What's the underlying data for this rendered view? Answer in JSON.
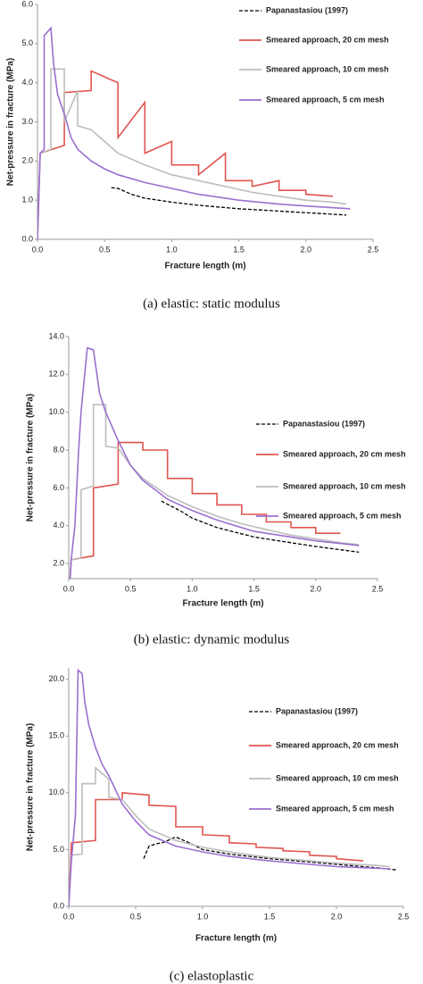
{
  "chart_data": [
    {
      "type": "line",
      "caption": "(a)  elastic: static modulus",
      "x_label": "Fracture length (m)",
      "y_label": "Net-pressure in fracture (MPa)",
      "xlim": [
        0,
        2.5
      ],
      "ylim": [
        0,
        6
      ],
      "xticks": [
        {
          "value": 0,
          "label": "0.0"
        },
        {
          "value": 0.5,
          "label": "0.5"
        },
        {
          "value": 1,
          "label": "1.0"
        },
        {
          "value": 1.5,
          "label": "1.5"
        },
        {
          "value": 2,
          "label": "2.0"
        },
        {
          "value": 2.5,
          "label": "2.5"
        }
      ],
      "yticks": [
        {
          "value": 0,
          "label": "0.0"
        },
        {
          "value": 1,
          "label": "1.0"
        },
        {
          "value": 2,
          "label": "2.0"
        },
        {
          "value": 3,
          "label": "3.0"
        },
        {
          "value": 4,
          "label": "4.0"
        },
        {
          "value": 5,
          "label": "5.0"
        },
        {
          "value": 6,
          "label": "6.0"
        }
      ],
      "series": [
        {
          "name": "Papanastasiou (1997)",
          "color": "#000000",
          "style": "dashed",
          "x": [
            0.55,
            0.6,
            0.7,
            0.8,
            1.0,
            1.2,
            1.5,
            1.8,
            2.0,
            2.3
          ],
          "values": [
            1.32,
            1.3,
            1.15,
            1.05,
            0.95,
            0.87,
            0.78,
            0.72,
            0.68,
            0.62
          ]
        },
        {
          "name": "Smeared approach, 20 cm mesh",
          "color": "#e0554f",
          "style": "solid",
          "x": [
            0,
            0.02,
            0.2,
            0.2,
            0.4,
            0.4,
            0.6,
            0.6,
            0.8,
            0.8,
            1.0,
            1.0,
            1.2,
            1.2,
            1.4,
            1.4,
            1.6,
            1.6,
            1.8,
            1.8,
            2.0,
            2.0,
            2.2
          ],
          "values": [
            0,
            2.2,
            2.4,
            3.75,
            3.8,
            4.3,
            4.0,
            2.6,
            3.5,
            2.2,
            2.5,
            1.9,
            1.9,
            1.65,
            2.2,
            1.5,
            1.5,
            1.35,
            1.5,
            1.25,
            1.25,
            1.15,
            1.1
          ]
        },
        {
          "name": "Smeared approach, 10 cm mesh",
          "color": "#bdbdbd",
          "style": "solid",
          "x": [
            0,
            0.02,
            0.1,
            0.1,
            0.2,
            0.2,
            0.3,
            0.3,
            0.4,
            0.5,
            0.6,
            0.8,
            1.0,
            1.2,
            1.4,
            1.6,
            1.8,
            2.0,
            2.2,
            2.3
          ],
          "values": [
            0,
            2.2,
            2.3,
            4.35,
            4.35,
            3.0,
            3.8,
            2.9,
            2.8,
            2.5,
            2.2,
            1.9,
            1.65,
            1.5,
            1.35,
            1.2,
            1.1,
            1.0,
            0.95,
            0.9
          ]
        },
        {
          "name": "Smeared approach, 5 cm mesh",
          "color": "#9b6fd0",
          "style": "solid",
          "x": [
            0,
            0.02,
            0.05,
            0.05,
            0.1,
            0.12,
            0.15,
            0.2,
            0.25,
            0.3,
            0.4,
            0.5,
            0.6,
            0.8,
            1.0,
            1.2,
            1.5,
            1.8,
            2.0,
            2.33
          ],
          "values": [
            0,
            2.2,
            2.3,
            5.2,
            5.4,
            4.5,
            3.7,
            3.2,
            2.6,
            2.3,
            2.0,
            1.8,
            1.65,
            1.45,
            1.3,
            1.15,
            1.0,
            0.9,
            0.85,
            0.78
          ]
        }
      ]
    },
    {
      "type": "line",
      "caption": "(b)  elastic: dynamic modulus",
      "x_label": "Fracture length (m)",
      "y_label": "Net-pressure in fracture (MPa)",
      "xlim": [
        0,
        2.5
      ],
      "ylim": [
        1.2,
        14
      ],
      "xticks": [
        {
          "value": 0,
          "label": "0.0"
        },
        {
          "value": 0.5,
          "label": "0.5"
        },
        {
          "value": 1,
          "label": "1.0"
        },
        {
          "value": 1.5,
          "label": "1.5"
        },
        {
          "value": 2,
          "label": "2.0"
        },
        {
          "value": 2.5,
          "label": "2.5"
        }
      ],
      "yticks": [
        {
          "value": 2,
          "label": "2.0"
        },
        {
          "value": 4,
          "label": "4.0"
        },
        {
          "value": 6,
          "label": "6.0"
        },
        {
          "value": 8,
          "label": "8.0"
        },
        {
          "value": 10,
          "label": "10.0"
        },
        {
          "value": 12,
          "label": "12.0"
        },
        {
          "value": 14,
          "label": "14.0"
        }
      ],
      "series": [
        {
          "name": "Papanastasiou (1997)",
          "color": "#000000",
          "style": "dashed",
          "x": [
            0.75,
            0.9,
            1.0,
            1.2,
            1.5,
            1.8,
            2.0,
            2.35
          ],
          "values": [
            5.3,
            4.8,
            4.4,
            3.9,
            3.4,
            3.1,
            2.9,
            2.6
          ]
        },
        {
          "name": "Smeared approach, 20 cm mesh",
          "color": "#e0554f",
          "style": "solid",
          "x": [
            0,
            0.02,
            0.2,
            0.2,
            0.4,
            0.4,
            0.6,
            0.6,
            0.8,
            0.8,
            1.0,
            1.0,
            1.2,
            1.2,
            1.4,
            1.4,
            1.6,
            1.6,
            1.8,
            1.8,
            2.0,
            2.0,
            2.2
          ],
          "values": [
            0,
            2.2,
            2.4,
            6.0,
            6.2,
            8.4,
            8.4,
            8.0,
            8.0,
            6.5,
            6.5,
            5.7,
            5.7,
            5.1,
            5.1,
            4.6,
            4.6,
            4.2,
            4.2,
            3.9,
            3.9,
            3.6,
            3.6
          ]
        },
        {
          "name": "Smeared approach, 10 cm mesh",
          "color": "#bdbdbd",
          "style": "solid",
          "x": [
            0,
            0.02,
            0.1,
            0.1,
            0.2,
            0.2,
            0.3,
            0.3,
            0.4,
            0.5,
            0.6,
            0.8,
            1.0,
            1.2,
            1.4,
            1.6,
            1.8,
            2.0,
            2.2,
            2.35
          ],
          "values": [
            0,
            2.2,
            2.3,
            5.9,
            6.1,
            10.4,
            10.4,
            8.2,
            8.1,
            7.2,
            6.5,
            5.6,
            5.0,
            4.5,
            4.1,
            3.8,
            3.5,
            3.3,
            3.1,
            3.0
          ]
        },
        {
          "name": "Smeared approach, 5 cm mesh",
          "color": "#9b6fd0",
          "style": "solid",
          "x": [
            0,
            0.02,
            0.05,
            0.08,
            0.1,
            0.15,
            0.2,
            0.25,
            0.3,
            0.4,
            0.5,
            0.6,
            0.8,
            1.0,
            1.2,
            1.5,
            1.8,
            2.0,
            2.35
          ],
          "values": [
            0,
            2.2,
            4.0,
            8.0,
            10.0,
            13.4,
            13.3,
            11.0,
            10.0,
            8.5,
            7.2,
            6.4,
            5.4,
            4.8,
            4.3,
            3.7,
            3.4,
            3.2,
            2.95
          ]
        }
      ]
    },
    {
      "type": "line",
      "caption": "(c)  elastoplastic",
      "x_label": "Fracture length (m)",
      "y_label": "Net-pressure in fracture (MPa)",
      "xlim": [
        0,
        2.5
      ],
      "ylim": [
        0,
        21
      ],
      "xticks": [
        {
          "value": 0,
          "label": "0.0"
        },
        {
          "value": 0.5,
          "label": "0.5"
        },
        {
          "value": 1,
          "label": "1.0"
        },
        {
          "value": 1.5,
          "label": "1.5"
        },
        {
          "value": 2,
          "label": "2.0"
        },
        {
          "value": 2.5,
          "label": "2.5"
        }
      ],
      "yticks": [
        {
          "value": 0,
          "label": "0.0"
        },
        {
          "value": 5,
          "label": "5.0"
        },
        {
          "value": 10,
          "label": "10.0"
        },
        {
          "value": 15,
          "label": "15.0"
        },
        {
          "value": 20,
          "label": "20.0"
        }
      ],
      "series": [
        {
          "name": "Papanastasiou (1997)",
          "color": "#000000",
          "style": "dashed",
          "x": [
            0.56,
            0.6,
            0.65,
            0.7,
            0.8,
            0.9,
            1.0,
            1.2,
            1.5,
            1.8,
            2.0,
            2.3,
            2.45
          ],
          "values": [
            4.2,
            5.3,
            5.5,
            5.6,
            6.1,
            5.6,
            5.0,
            4.6,
            4.2,
            3.9,
            3.7,
            3.4,
            3.2
          ]
        },
        {
          "name": "Smeared approach, 20 cm mesh",
          "color": "#e0554f",
          "style": "solid",
          "x": [
            0,
            0.02,
            0.2,
            0.2,
            0.4,
            0.4,
            0.6,
            0.6,
            0.8,
            0.8,
            1.0,
            1.0,
            1.2,
            1.2,
            1.4,
            1.4,
            1.6,
            1.6,
            1.8,
            1.8,
            2.0,
            2.0,
            2.2
          ],
          "values": [
            0,
            5.6,
            5.8,
            9.4,
            9.4,
            10.0,
            9.8,
            8.9,
            8.8,
            7.0,
            7.0,
            6.3,
            6.2,
            5.6,
            5.5,
            5.2,
            5.1,
            4.9,
            4.8,
            4.5,
            4.4,
            4.2,
            4.0
          ]
        },
        {
          "name": "Smeared approach, 10 cm mesh",
          "color": "#bdbdbd",
          "style": "solid",
          "x": [
            0,
            0.02,
            0.1,
            0.1,
            0.2,
            0.2,
            0.3,
            0.3,
            0.4,
            0.5,
            0.6,
            0.8,
            1.0,
            1.2,
            1.5,
            1.8,
            2.0,
            2.3,
            2.4
          ],
          "values": [
            0,
            4.5,
            4.6,
            10.8,
            10.8,
            12.2,
            11.2,
            9.6,
            9.4,
            8.0,
            6.8,
            5.8,
            5.2,
            4.8,
            4.3,
            4.0,
            3.8,
            3.6,
            3.5
          ]
        },
        {
          "name": "Smeared approach, 5 cm mesh",
          "color": "#9b6fd0",
          "style": "solid",
          "x": [
            0,
            0.02,
            0.05,
            0.07,
            0.1,
            0.12,
            0.15,
            0.2,
            0.25,
            0.3,
            0.4,
            0.5,
            0.6,
            0.8,
            1.0,
            1.2,
            1.5,
            1.8,
            2.0,
            2.4
          ],
          "values": [
            0,
            4.0,
            8,
            20.8,
            20.5,
            18,
            16,
            14,
            12.5,
            11.5,
            9.0,
            7.5,
            6.3,
            5.3,
            4.8,
            4.4,
            4.0,
            3.7,
            3.5,
            3.3
          ]
        }
      ]
    }
  ]
}
